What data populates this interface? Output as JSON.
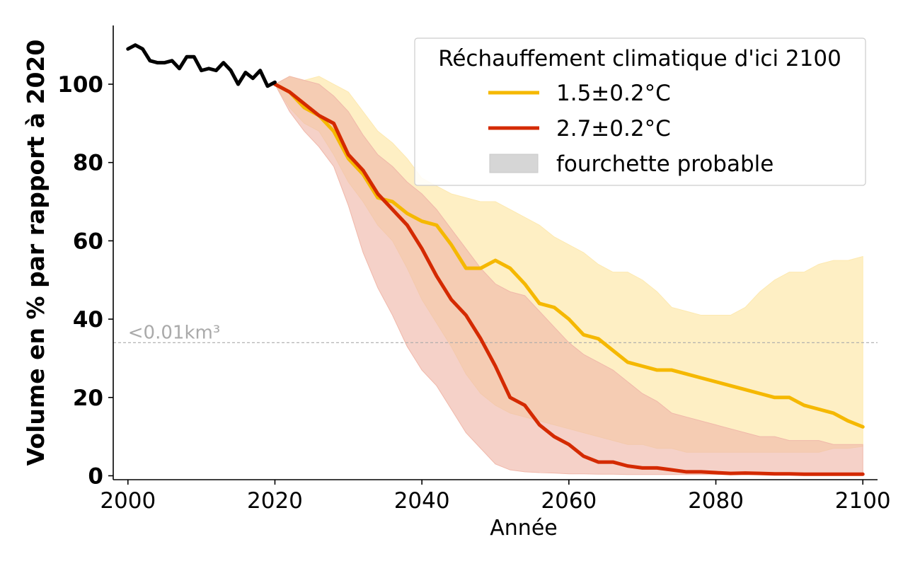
{
  "chart_data": {
    "type": "line",
    "xlabel": "Année",
    "ylabel": "Volume en % par rapport à 2020",
    "xlim": [
      1998,
      2102
    ],
    "ylim": [
      -1,
      115
    ],
    "xticks": [
      2000,
      2020,
      2040,
      2060,
      2080,
      2100
    ],
    "yticks": [
      0,
      20,
      40,
      60,
      80,
      100
    ],
    "grid": false,
    "legend": {
      "title": "Réchauffement climatique d'ici 2100",
      "placement": "top-right",
      "entries": [
        {
          "label": "1.5±0.2°C",
          "color": "#f5b800",
          "kind": "line"
        },
        {
          "label": "2.7±0.2°C",
          "color": "#d42a00",
          "kind": "line"
        },
        {
          "label": "fourchette probable",
          "color": "#d6d6d6",
          "kind": "band"
        }
      ]
    },
    "threshold": {
      "y": 34,
      "label": "<0.01km³",
      "color": "#aaaaaa"
    },
    "historical": {
      "color": "#000000",
      "x": [
        2000,
        2001,
        2002,
        2003,
        2004,
        2005,
        2006,
        2007,
        2008,
        2009,
        2010,
        2011,
        2012,
        2013,
        2014,
        2015,
        2016,
        2017,
        2018,
        2019,
        2020
      ],
      "y": [
        109,
        110,
        109,
        106,
        105.5,
        105.5,
        106,
        104,
        107,
        107,
        103.5,
        104,
        103.5,
        105.5,
        103.5,
        100,
        103,
        101.5,
        103.5,
        99.5,
        100.5
      ]
    },
    "series": [
      {
        "name": "1.5±0.2°C",
        "color": "#f5b800",
        "band_color": "#fde9b0",
        "x": [
          2020,
          2022,
          2024,
          2026,
          2028,
          2030,
          2032,
          2034,
          2036,
          2038,
          2040,
          2042,
          2044,
          2046,
          2048,
          2050,
          2052,
          2054,
          2056,
          2058,
          2060,
          2062,
          2064,
          2066,
          2068,
          2070,
          2072,
          2074,
          2076,
          2078,
          2080,
          2082,
          2084,
          2086,
          2088,
          2090,
          2092,
          2094,
          2096,
          2098,
          2100
        ],
        "values": [
          100,
          98,
          94,
          92,
          88,
          81,
          77,
          71,
          70,
          67,
          65,
          64,
          59,
          53,
          53,
          55,
          53,
          49,
          44,
          43,
          40,
          36,
          35,
          32,
          29,
          28,
          27,
          27,
          26,
          25,
          24,
          23,
          22,
          21,
          20,
          20,
          18,
          17,
          16,
          14,
          12.5
        ],
        "band_low": [
          100,
          94,
          90,
          88,
          82,
          75,
          70,
          64,
          60,
          53,
          45,
          39,
          33,
          26,
          21,
          18,
          16,
          15,
          14,
          13,
          12,
          11,
          10,
          9,
          8,
          8,
          7,
          7,
          6,
          6,
          6,
          6,
          6,
          6,
          6,
          6,
          6,
          6,
          7,
          7,
          7.5
        ],
        "band_high": [
          100,
          102,
          101,
          102,
          100,
          98,
          93,
          88,
          85,
          81,
          76,
          74,
          72,
          71,
          70,
          70,
          68,
          66,
          64,
          61,
          59,
          57,
          54,
          52,
          52,
          50,
          47,
          43,
          42,
          41,
          41,
          41,
          43,
          47,
          50,
          52,
          52,
          54,
          55,
          55,
          56
        ]
      },
      {
        "name": "2.7±0.2°C",
        "color": "#d42a00",
        "band_color": "#f0b8aa",
        "x": [
          2020,
          2022,
          2024,
          2026,
          2028,
          2030,
          2032,
          2034,
          2036,
          2038,
          2040,
          2042,
          2044,
          2046,
          2048,
          2050,
          2052,
          2054,
          2056,
          2058,
          2060,
          2062,
          2064,
          2066,
          2068,
          2070,
          2072,
          2074,
          2076,
          2078,
          2080,
          2082,
          2084,
          2086,
          2088,
          2090,
          2092,
          2094,
          2096,
          2098,
          2100
        ],
        "values": [
          100,
          98,
          95,
          92,
          90,
          82,
          78,
          72,
          68,
          64,
          58,
          51,
          45,
          41,
          35,
          28,
          20,
          18,
          13,
          10,
          8,
          5,
          3.5,
          3.5,
          2.5,
          2,
          2,
          1.5,
          1,
          1,
          0.8,
          0.6,
          0.7,
          0.6,
          0.5,
          0.5,
          0.4,
          0.4,
          0.4,
          0.4,
          0.4
        ],
        "band_low": [
          100,
          93,
          88,
          84,
          79,
          69,
          57,
          48,
          41,
          33,
          27,
          23,
          17,
          11,
          7,
          3,
          1.5,
          1,
          0.8,
          0.7,
          0.5,
          0.5,
          0.4,
          0.4,
          0.3,
          0.3,
          0.3,
          0.3,
          0.3,
          0.3,
          0.3,
          0.3,
          0.3,
          0.3,
          0.3,
          0.3,
          0.3,
          0.3,
          0.3,
          0.3,
          0.3
        ],
        "band_high": [
          100,
          102,
          101,
          100,
          97,
          93,
          87,
          82,
          79,
          75,
          72,
          68,
          63,
          58,
          53,
          49,
          47,
          46,
          42,
          38,
          34,
          31,
          29,
          27,
          24,
          21,
          19,
          16,
          15,
          14,
          13,
          12,
          11,
          10,
          10,
          9,
          9,
          9,
          8,
          8,
          8
        ]
      }
    ]
  }
}
